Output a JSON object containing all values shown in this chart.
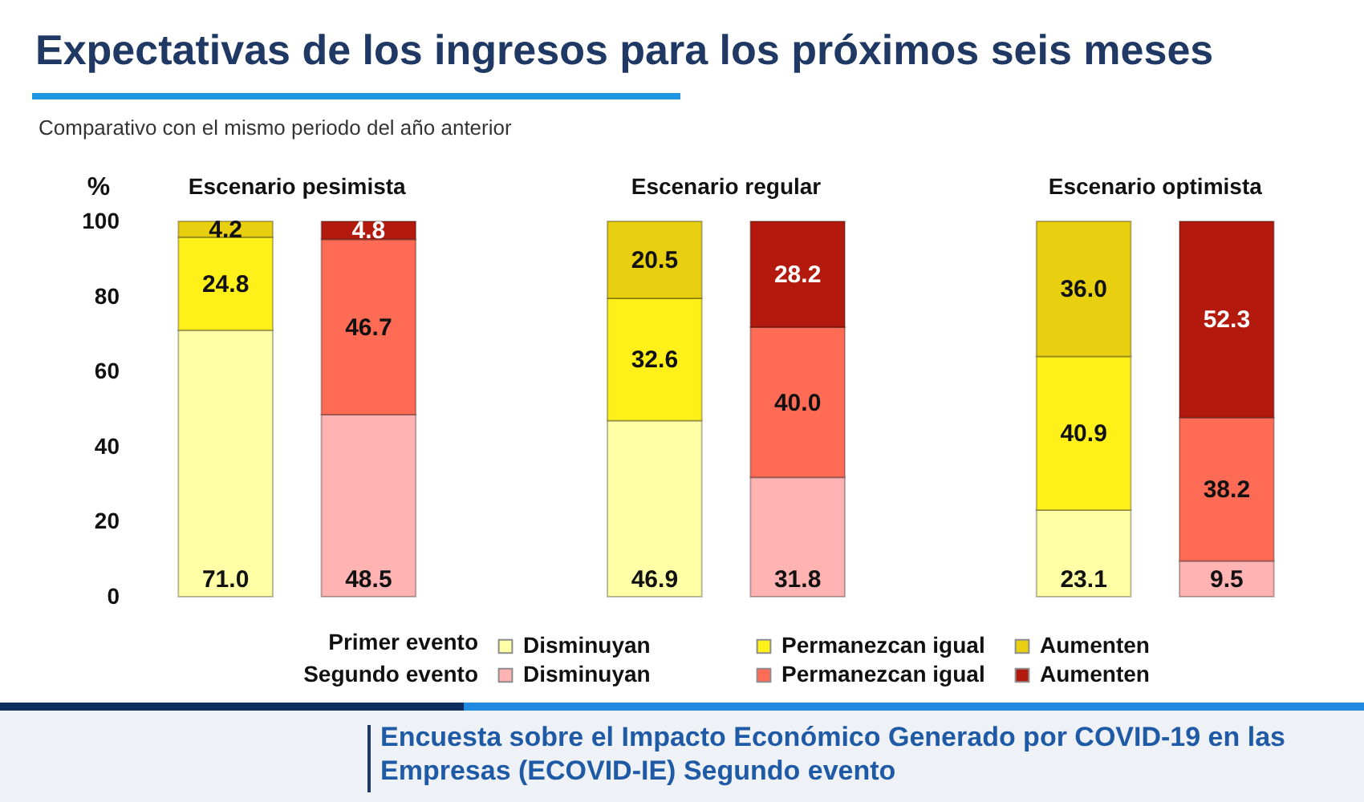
{
  "chart_data": {
    "type": "bar",
    "title": "Expectativas de los ingresos para los próximos seis meses",
    "ylabel": "%",
    "categories": [
      null,
      null,
      null,
      null,
      null,
      null
    ],
    "stacked": true,
    "ylim": [
      0,
      100
    ],
    "yticks": [
      0,
      20,
      40,
      60,
      80,
      100
    ],
    "legend": "bottom",
    "series": [
      {
        "name": "Disminuyan",
        "color": "#ffffa6",
        "values": [
          71.0,
          null,
          46.9,
          null,
          23.1,
          null
        ],
        "value_labels": [
          "71.0",
          null,
          "46.9",
          null,
          "23.1",
          null
        ]
      },
      {
        "name": "Permanezcan igual",
        "color": "#fff01a",
        "values": [
          24.8,
          null,
          32.6,
          null,
          40.9,
          null
        ],
        "value_labels": [
          "24.8",
          null,
          "32.6",
          null,
          "40.9",
          null
        ]
      },
      {
        "name": "Aumenten",
        "color": "#e8cf10",
        "values": [
          4.2,
          null,
          20.5,
          null,
          36.0,
          null
        ],
        "value_labels": [
          "4.2",
          null,
          "20.5",
          null,
          "36.0",
          null
        ]
      },
      {
        "name": "Disminuyan",
        "color": "#ffb3b3",
        "values": [
          null,
          48.5,
          null,
          31.8,
          null,
          9.5
        ],
        "value_labels": [
          null,
          "48.5",
          null,
          "31.8",
          null,
          "9.5"
        ]
      },
      {
        "name": "Permanezcan igual",
        "color": "#ff6b55",
        "values": [
          null,
          46.7,
          null,
          40.0,
          null,
          38.2
        ],
        "value_labels": [
          null,
          "46.7",
          null,
          "40.0",
          null,
          "38.2"
        ]
      },
      {
        "name": "Aumenten",
        "color": "#b3190c",
        "values": [
          null,
          4.8,
          null,
          28.2,
          null,
          52.3
        ],
        "value_labels": [
          null,
          "4.8",
          null,
          "28.2",
          null,
          "52.3"
        ]
      }
    ],
    "annotations": [
      "Escenario pesimista",
      "Escenario regular",
      "Escenario optimista",
      "Primer evento",
      "Segundo evento",
      "Encuesta sobre el Impacto Económico Generado por COVID-19 en las Empresas (ECOVID-IE) Segundo evento",
      "Comparativo con el mismo periodo del año anterior"
    ]
  }
}
